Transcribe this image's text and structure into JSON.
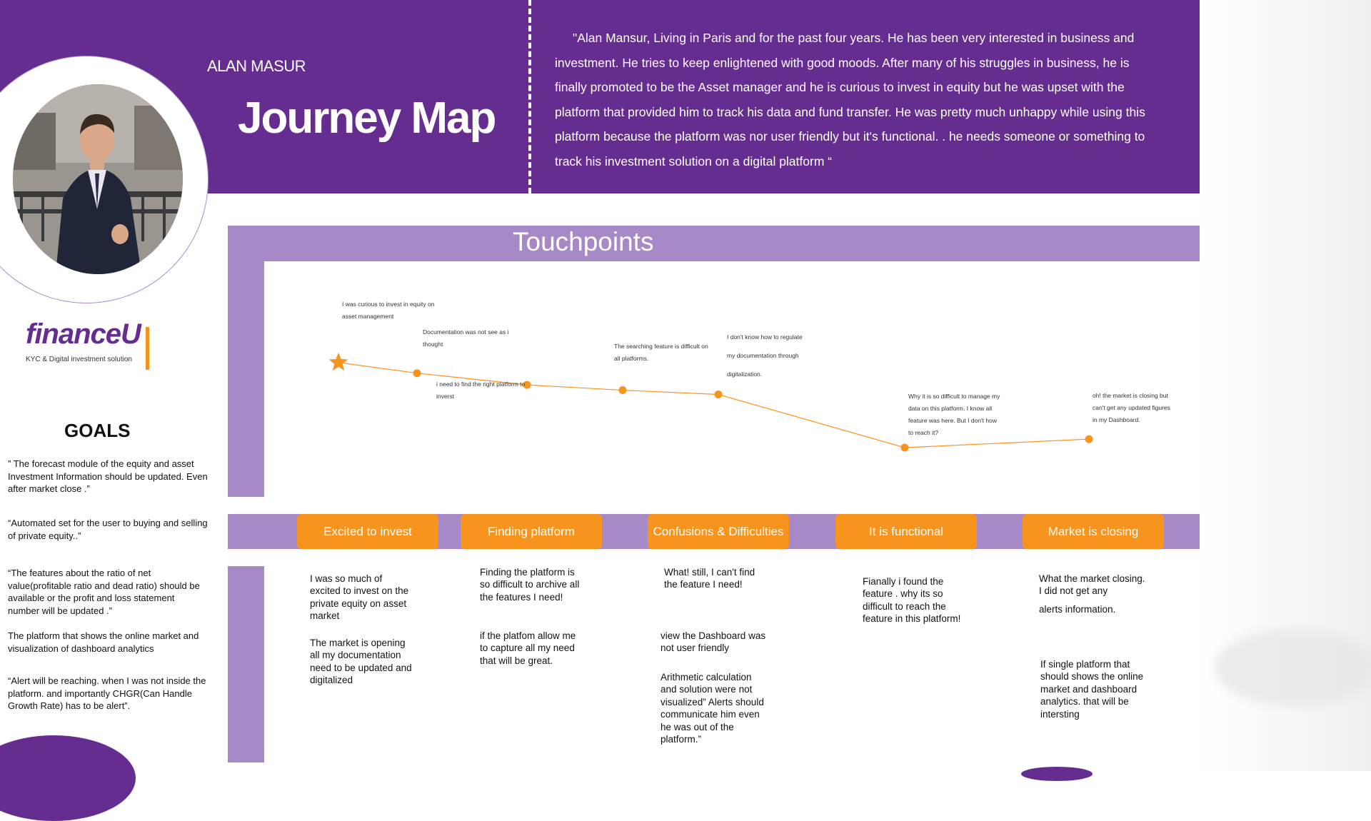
{
  "header": {
    "persona_name": "ALAN MASUR",
    "title": "Journey Map",
    "bio": "\"Alan Mansur,  Living in Paris and for the past four years. He has been very interested in business and investment. He tries to keep enlightened with good moods. After many of his struggles in business, he is finally promoted to be the Asset manager and he is curious to invest in equity but he was upset with the platform that provided him to track his data and fund transfer. He was pretty much unhappy while using this platform because the platform was nor user friendly but it's functional. . he needs someone or something to track his investment solution on a digital platform “"
  },
  "logo": {
    "name": "financeU",
    "tagline": "KYC & Digital investment solution"
  },
  "goals": {
    "title": "GOALS",
    "items": [
      "” The forecast module of the equity and asset Investment  Information should be updated. Even after market close .”",
      "“Automated set for the user to buying and selling of private equity..”",
      "“The features about the ratio of net value(profitable ratio and dead ratio) should be available or the profit and loss statement number will be  updated .”",
      "The platform that shows the online market and visualization of dashboard analytics",
      "“Alert will be reaching. when I was not inside the platform. and importantly CHGR(Can Handle Growth Rate) has to be alert”."
    ]
  },
  "touchpoints": {
    "title": "Touchpoints",
    "notes": [
      "I was  curious to invest in equity on asset management",
      "Documentation was not see as i thought",
      "i need to find the right platform to inverst",
      "The searching feature is difficult on all platforms.",
      "I don't know how to regulate my documentation through digitalization.",
      "Why it is so difficult to manage my data on this platform. I know all feature was here. But I don't how to reach it?",
      "oh! the market is closing but can't get any updated figures in my Dashboard."
    ]
  },
  "chart_data": {
    "type": "line",
    "points": [
      {
        "marker": "star",
        "level": 0.8
      },
      {
        "marker": "dot",
        "level": 0.7
      },
      {
        "marker": "dot",
        "level": 0.59
      },
      {
        "marker": "dot",
        "level": 0.54
      },
      {
        "marker": "dot",
        "level": 0.5
      },
      {
        "marker": "dot",
        "level": 0.0
      },
      {
        "marker": "dot",
        "level": 0.08
      }
    ],
    "line_color": "#f7941d"
  },
  "stages": [
    "Excited to invest",
    "Finding platform",
    "Confusions & Difficulties",
    "It is functional",
    "Market is closing"
  ],
  "thoughts": {
    "excited_1": "I was so much of excited to invest on the private equity on asset market",
    "excited_2": "The market is opening all my documentation need to be updated and digitalized",
    "finding_1": "Finding the platform is so difficult to archive all the features I need!",
    "finding_2": "if the platfom allow me to capture all my need that will be great.",
    "confusion_1": "What! still, I can't find the feature I need!",
    "confusion_2": "view the Dashboard was not user friendly",
    "confusion_3": "Arithmetic calculation and solution were not visualized” Alerts should communicate him even he was out of the platform.”",
    "functional_1": "Fianally i found the feature . why its so difficult to reach the feature in this platform!",
    "market_1": "What the market closing. I did not get any",
    "market_2": "alerts information.",
    "market_3": "If single platform that should shows the online market and dashboard analytics. that will be intersting"
  },
  "colors": {
    "primary_purple": "#662d91",
    "light_purple": "#a689c6",
    "orange": "#f7941d"
  }
}
